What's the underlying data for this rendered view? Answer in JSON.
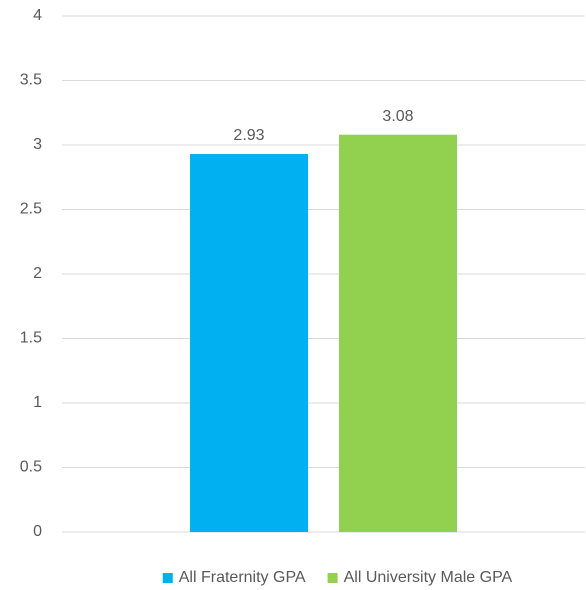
{
  "chart_data": {
    "type": "bar",
    "categories": [
      null
    ],
    "series": [
      {
        "name": "All Fraternity GPA",
        "color": "#00b0f0",
        "values": [
          2.93
        ]
      },
      {
        "name": "All University Male GPA",
        "color": "#92d050",
        "values": [
          3.08
        ]
      }
    ],
    "ylim": [
      0,
      4
    ],
    "yticks": [
      0,
      0.5,
      1,
      1.5,
      2,
      2.5,
      3,
      3.5,
      4
    ],
    "grid": true,
    "legend": "bottom"
  }
}
